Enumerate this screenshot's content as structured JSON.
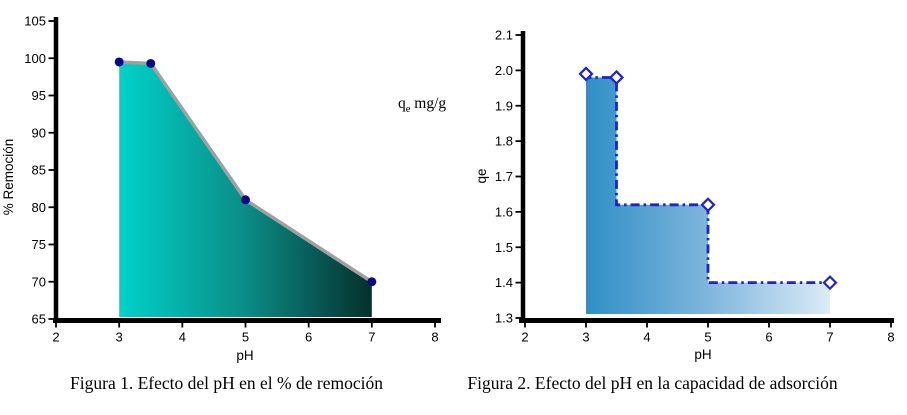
{
  "figures": [
    {
      "caption": "Figura 1. Efecto del pH en el % de remoción",
      "annotation": {
        "base": "q",
        "sub": "e",
        "rest": " mg/g"
      }
    },
    {
      "caption": "Figura 2. Efecto del pH en la capacidad de adsorción"
    }
  ],
  "chart_data": [
    {
      "type": "area",
      "title": "Figura 1. Efecto del pH en el % de remoción",
      "xlabel": "pH",
      "ylabel": "% Remoción",
      "x": [
        3,
        3.5,
        5,
        7
      ],
      "y": [
        99.5,
        99.3,
        81,
        70
      ],
      "xlim": [
        2,
        8
      ],
      "ylim": [
        65,
        105
      ],
      "xticks": [
        2,
        3,
        4,
        5,
        6,
        7,
        8
      ],
      "yticks": [
        65,
        70,
        75,
        80,
        85,
        90,
        95,
        100,
        105
      ],
      "ytick_decimals": 0,
      "step": false,
      "grid": false,
      "legend_position": "none",
      "annotation": "qe mg/g",
      "fill_gradient": [
        "#00D2CA",
        "#0B8C86",
        "#05302C"
      ],
      "line_color": "#A0A0A0",
      "line_style": "solid",
      "marker": "circle",
      "marker_color": "#0A0A86",
      "axis_color": "#000000"
    },
    {
      "type": "area",
      "title": "Figura 2. Efecto del pH en la capacidad de adsorción",
      "xlabel": "pH",
      "ylabel": "qe",
      "x": [
        3,
        3.5,
        5,
        7
      ],
      "y": [
        1.99,
        1.98,
        1.62,
        1.4
      ],
      "xlim": [
        2,
        8
      ],
      "ylim": [
        1.3,
        2.1
      ],
      "xticks": [
        2,
        3,
        4,
        5,
        6,
        7,
        8
      ],
      "yticks": [
        1.3,
        1.4,
        1.5,
        1.6,
        1.7,
        1.8,
        1.9,
        2.0,
        2.1
      ],
      "ytick_decimals": 1,
      "step": true,
      "grid": false,
      "legend_position": "none",
      "fill_gradient": [
        "#2E8FC6",
        "#7FB6DC",
        "#DCEBF7"
      ],
      "line_color": "#2222CC",
      "line_style": "dashdot",
      "marker": "diamond",
      "marker_color": "#2222CC",
      "axis_color": "#000000"
    }
  ]
}
